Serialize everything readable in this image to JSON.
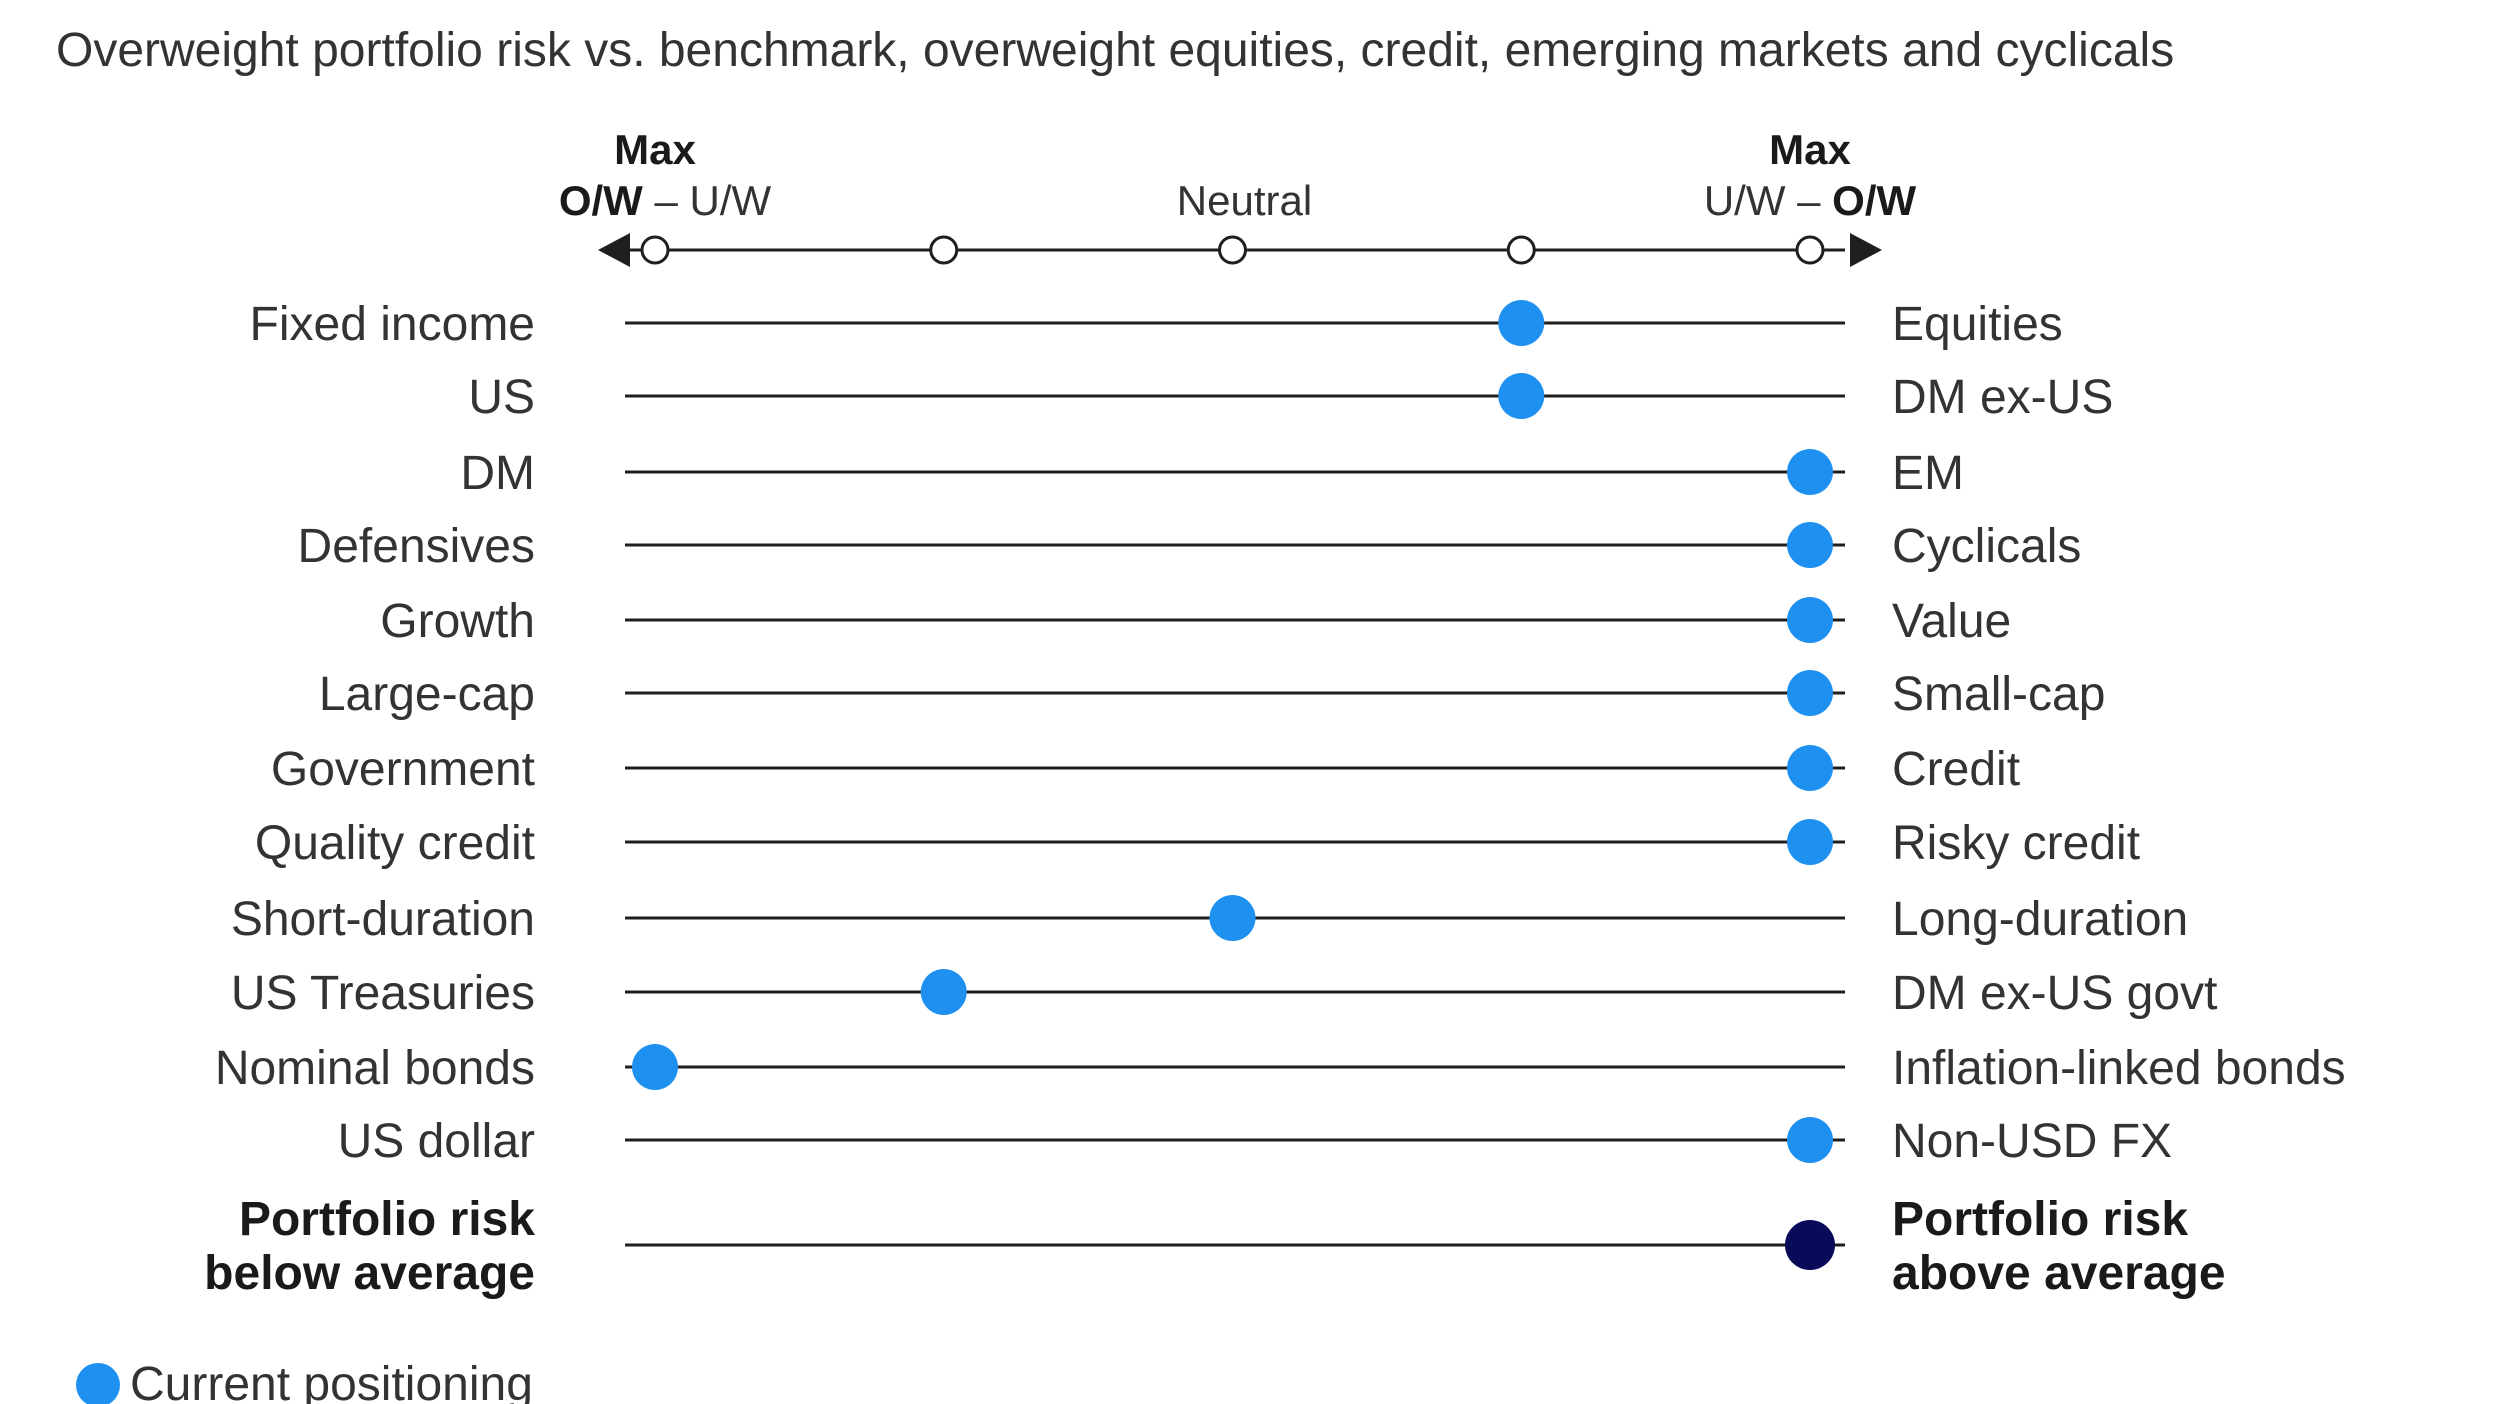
{
  "chart_data": {
    "type": "scatter",
    "title": "Overweight portfolio risk vs. benchmark, overweight equities, credit, emerging markets and cyclicals",
    "scale": {
      "ticks": [
        -2,
        -1,
        0,
        1,
        2
      ],
      "range": [
        -2,
        2
      ],
      "left_header": {
        "top": "Max",
        "bottom_bold": "O/W",
        "bottom_rest": " – U/W"
      },
      "center_label": "Neutral",
      "right_header": {
        "top": "Max",
        "bottom_rest": "U/W – ",
        "bottom_bold": "O/W"
      }
    },
    "rows": [
      {
        "left": [
          "Fixed income"
        ],
        "right": [
          "Equities"
        ],
        "value": 1,
        "highlight": false
      },
      {
        "left": [
          "US"
        ],
        "right": [
          "DM ex-US"
        ],
        "value": 1,
        "highlight": false
      },
      {
        "left": [
          "DM"
        ],
        "right": [
          "EM"
        ],
        "value": 2,
        "highlight": false
      },
      {
        "left": [
          "Defensives"
        ],
        "right": [
          "Cyclicals"
        ],
        "value": 2,
        "highlight": false
      },
      {
        "left": [
          "Growth"
        ],
        "right": [
          "Value"
        ],
        "value": 2,
        "highlight": false
      },
      {
        "left": [
          "Large-cap"
        ],
        "right": [
          "Small-cap"
        ],
        "value": 2,
        "highlight": false
      },
      {
        "left": [
          "Government"
        ],
        "right": [
          "Credit"
        ],
        "value": 2,
        "highlight": false
      },
      {
        "left": [
          "Quality credit"
        ],
        "right": [
          "Risky credit"
        ],
        "value": 2,
        "highlight": false
      },
      {
        "left": [
          "Short-duration"
        ],
        "right": [
          "Long-duration"
        ],
        "value": 0,
        "highlight": false
      },
      {
        "left": [
          "US Treasuries"
        ],
        "right": [
          "DM ex-US govt"
        ],
        "value": -1,
        "highlight": false
      },
      {
        "left": [
          "Nominal bonds"
        ],
        "right": [
          "Inflation-linked bonds"
        ],
        "value": -2,
        "highlight": false
      },
      {
        "left": [
          "US dollar"
        ],
        "right": [
          "Non-USD FX"
        ],
        "value": 2,
        "highlight": false
      },
      {
        "left": [
          "Portfolio risk",
          "below average"
        ],
        "right": [
          "Portfolio risk",
          "above average"
        ],
        "value": 2,
        "highlight": true
      }
    ],
    "legend": {
      "label": "Current positioning",
      "placement": "bottom-left"
    },
    "grid": false
  },
  "colors": {
    "dot": "#1e90f0",
    "dot_highlight": "#0a0a5a",
    "line": "#1f1f1f",
    "text": "#333333"
  }
}
